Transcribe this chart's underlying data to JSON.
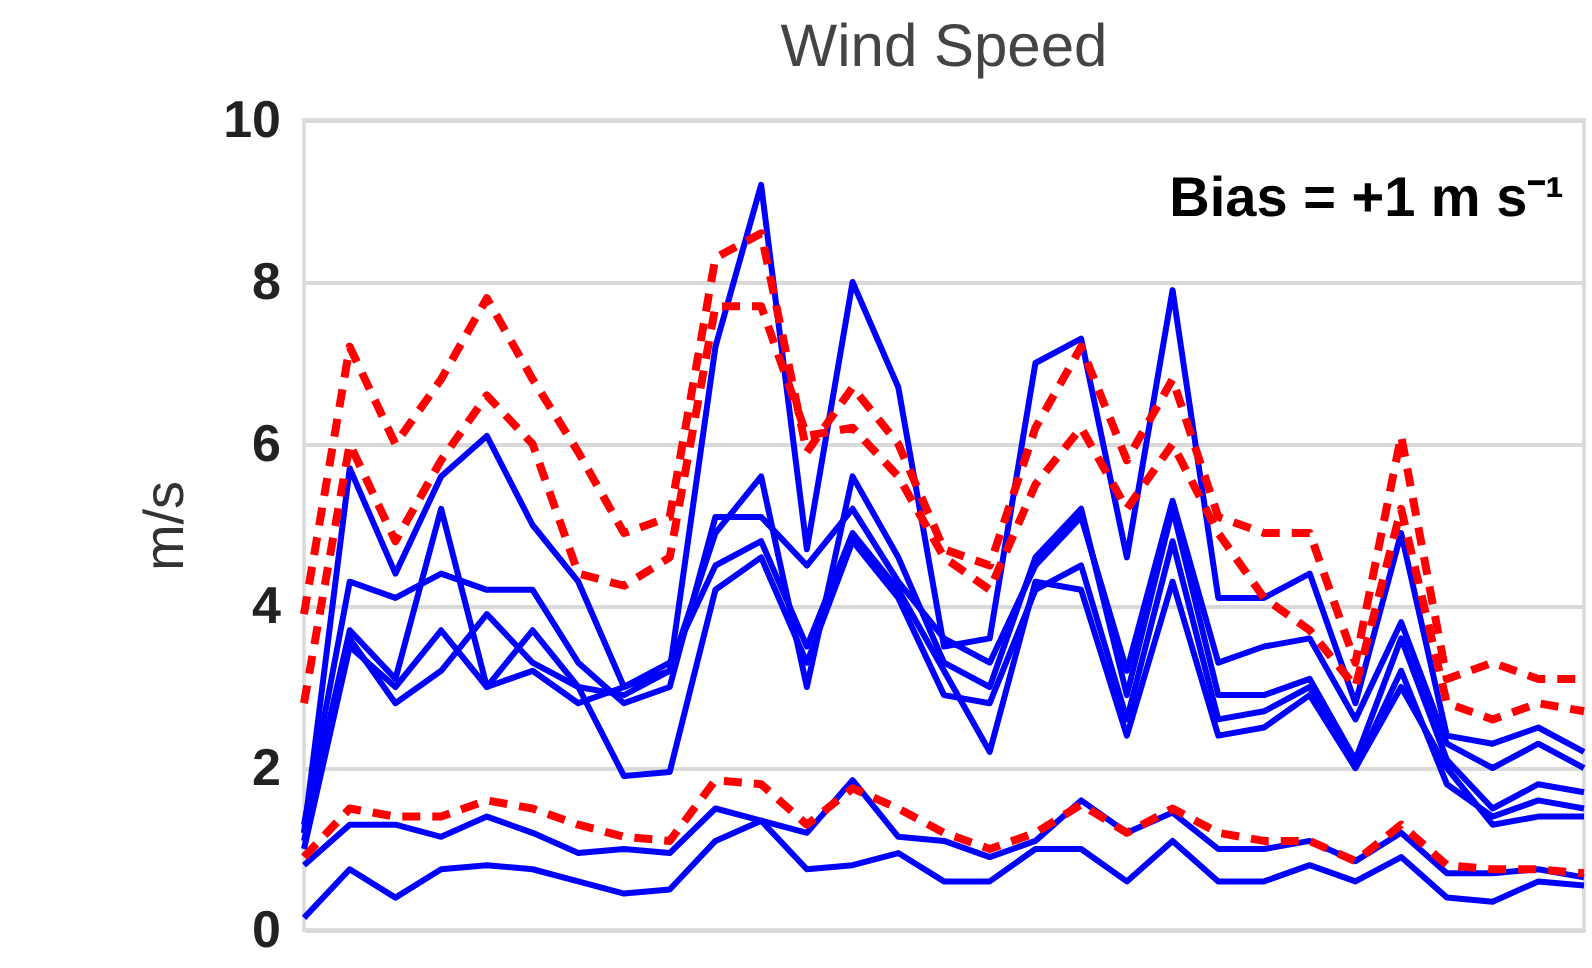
{
  "chart_data": {
    "type": "line",
    "title": "Wind Speed",
    "ylabel": "m/s",
    "annotations": [
      "Bias = +1 m s⁻¹"
    ],
    "categories": [
      null,
      null,
      null,
      null,
      null,
      null,
      null,
      null,
      null,
      null,
      null,
      null,
      null,
      null,
      null,
      null,
      null,
      null,
      null,
      null,
      null,
      null,
      null,
      null,
      null,
      null,
      null,
      null,
      null
    ],
    "ylim": [
      0,
      10
    ],
    "yticks": [
      0,
      2,
      4,
      6,
      8,
      10
    ],
    "grid": "y",
    "legend": false,
    "tick_labels": "y",
    "series": [
      {
        "color": "#ff0000",
        "line_style": "dashed",
        "values": [
          3.9,
          7.2,
          6.0,
          6.8,
          7.8,
          6.8,
          5.9,
          4.9,
          5.1,
          8.3,
          8.6,
          5.9,
          6.7,
          6.0,
          4.7,
          4.5,
          6.2,
          7.2,
          5.8,
          6.8,
          5.1,
          4.9,
          4.9,
          3.3,
          6.1,
          3.1,
          3.3,
          3.1,
          3.1
        ]
      },
      {
        "color": "#ff0000",
        "line_style": "dashed",
        "values": [
          2.8,
          6.0,
          4.8,
          5.8,
          6.6,
          6.0,
          4.4,
          4.25,
          4.6,
          7.7,
          7.7,
          6.1,
          6.2,
          5.6,
          4.6,
          4.2,
          5.5,
          6.2,
          5.2,
          6.0,
          4.9,
          4.1,
          3.7,
          3.0,
          5.2,
          2.8,
          2.6,
          2.8,
          2.7
        ]
      },
      {
        "color": "#ff0000",
        "line_style": "dashed",
        "values": [
          0.9,
          1.5,
          1.4,
          1.4,
          1.6,
          1.5,
          1.3,
          1.15,
          1.1,
          1.85,
          1.8,
          1.3,
          1.75,
          1.5,
          1.2,
          1.0,
          1.2,
          1.55,
          1.2,
          1.5,
          1.2,
          1.1,
          1.1,
          0.85,
          1.3,
          0.8,
          0.75,
          0.75,
          0.7
        ]
      },
      {
        "color": "#0000ff",
        "line_style": "solid",
        "values": [
          1.2,
          5.7,
          4.4,
          5.6,
          6.1,
          5.0,
          4.3,
          3.0,
          3.2,
          7.2,
          9.2,
          4.7,
          8.0,
          6.7,
          3.5,
          3.6,
          7.0,
          7.3,
          4.6,
          7.9,
          4.1,
          4.1,
          4.4,
          2.8,
          4.9,
          2.4,
          2.3,
          2.5,
          2.2
        ]
      },
      {
        "color": "#0000ff",
        "line_style": "solid",
        "values": [
          1.3,
          4.3,
          4.1,
          4.4,
          4.2,
          4.2,
          3.3,
          2.8,
          3.0,
          5.1,
          5.1,
          4.5,
          5.2,
          4.3,
          3.6,
          3.3,
          4.5,
          5.1,
          3.2,
          5.3,
          3.3,
          3.5,
          3.6,
          2.6,
          3.8,
          2.3,
          2.0,
          2.3,
          2.0
        ]
      },
      {
        "color": "#0000ff",
        "line_style": "solid",
        "values": [
          1.2,
          3.7,
          3.1,
          5.2,
          3.0,
          3.7,
          3.0,
          2.9,
          3.2,
          4.9,
          5.6,
          3.0,
          5.6,
          4.6,
          3.3,
          3.0,
          4.6,
          5.2,
          2.9,
          5.2,
          2.9,
          2.9,
          3.1,
          2.1,
          3.6,
          2.1,
          1.5,
          1.8,
          1.7
        ]
      },
      {
        "color": "#0000ff",
        "line_style": "solid",
        "values": [
          1.1,
          3.6,
          2.8,
          3.2,
          3.9,
          3.3,
          3.0,
          1.9,
          1.95,
          4.2,
          4.6,
          3.3,
          4.8,
          4.1,
          2.9,
          2.8,
          4.2,
          4.5,
          2.6,
          4.8,
          2.6,
          2.7,
          3.0,
          2.0,
          3.2,
          1.8,
          1.4,
          1.6,
          1.5
        ]
      },
      {
        "color": "#0000ff",
        "line_style": "solid",
        "values": [
          1.0,
          3.5,
          3.0,
          3.7,
          3.0,
          3.2,
          2.8,
          3.0,
          3.3,
          4.5,
          4.8,
          3.5,
          4.9,
          4.2,
          3.2,
          2.2,
          4.3,
          4.2,
          2.4,
          4.3,
          2.4,
          2.5,
          2.9,
          2.0,
          3.0,
          2.0,
          1.3,
          1.4,
          1.4
        ]
      },
      {
        "color": "#0000ff",
        "line_style": "solid",
        "values": [
          0.8,
          1.3,
          1.3,
          1.15,
          1.4,
          1.2,
          0.95,
          1.0,
          0.95,
          1.5,
          1.35,
          1.2,
          1.85,
          1.15,
          1.1,
          0.9,
          1.1,
          1.6,
          1.2,
          1.45,
          1.0,
          1.0,
          1.1,
          0.85,
          1.2,
          0.7,
          0.7,
          0.75,
          0.65
        ]
      },
      {
        "color": "#0000ff",
        "line_style": "solid",
        "values": [
          0.15,
          0.75,
          0.4,
          0.75,
          0.8,
          0.75,
          0.6,
          0.45,
          0.5,
          1.1,
          1.35,
          0.75,
          0.8,
          0.95,
          0.6,
          0.6,
          1.0,
          1.0,
          0.6,
          1.1,
          0.6,
          0.6,
          0.8,
          0.6,
          0.9,
          0.4,
          0.35,
          0.6,
          0.55
        ]
      }
    ]
  }
}
